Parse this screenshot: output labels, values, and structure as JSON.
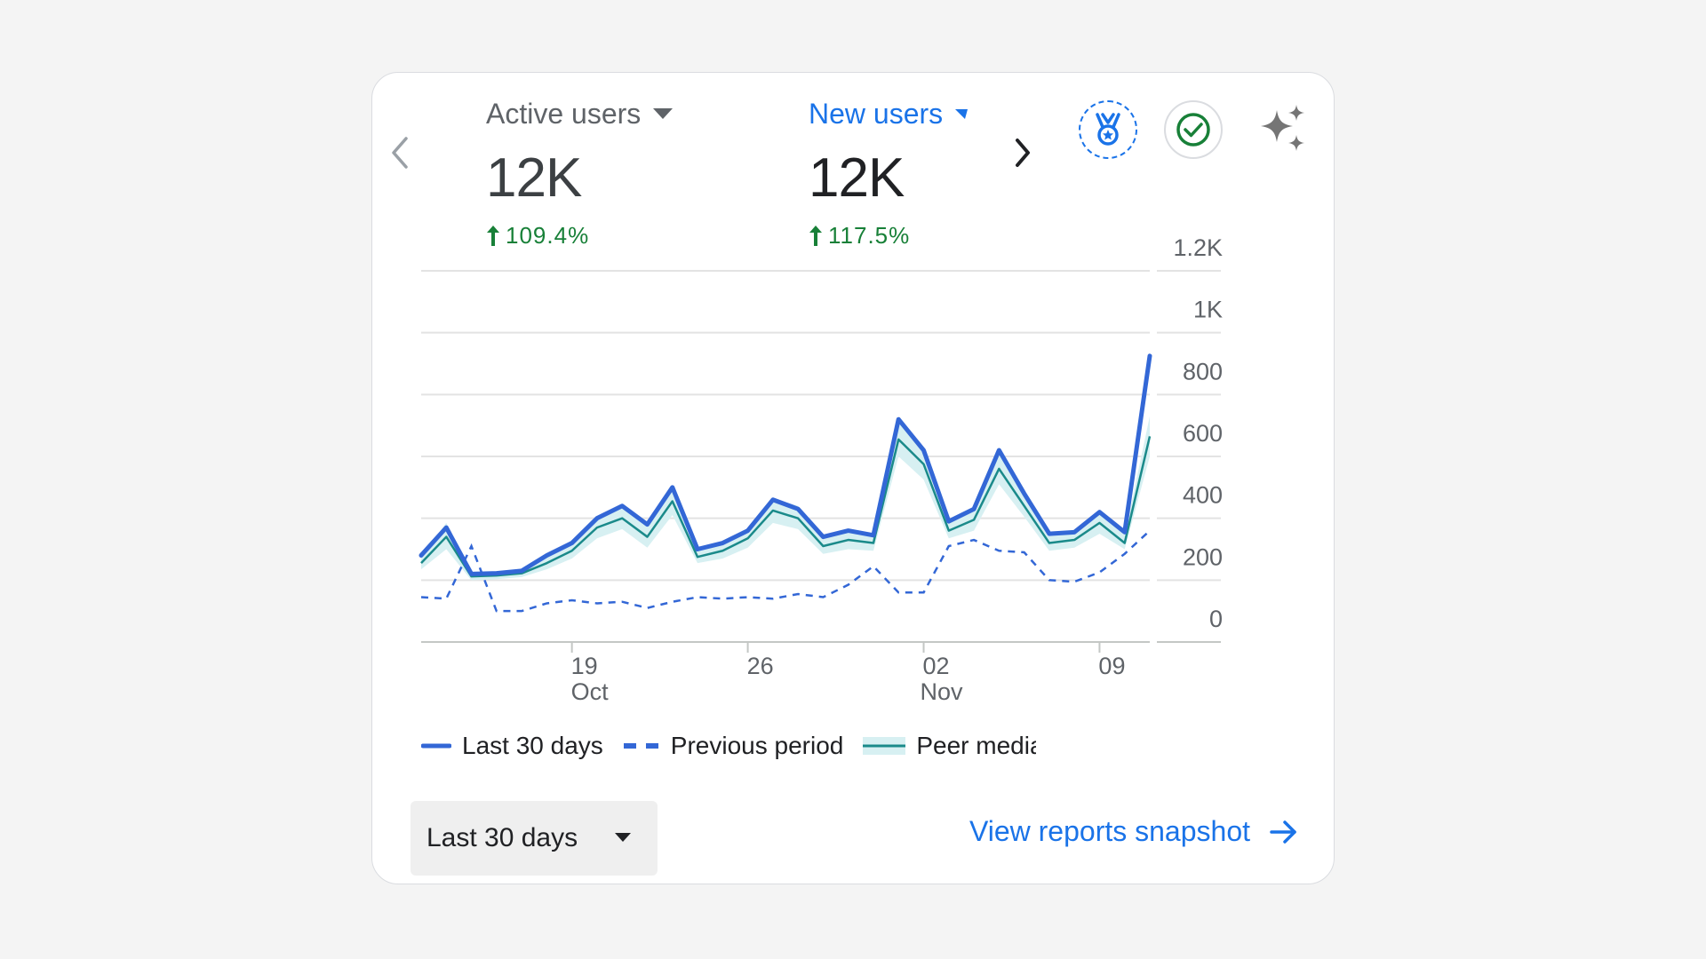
{
  "header": {
    "prev_icon": "chevron-left-icon",
    "next_icon": "chevron-right-icon",
    "metrics": [
      {
        "label": "Active users",
        "value": "12K",
        "change": "109.4%",
        "selected": false,
        "dropdown_icon": "caret-down-icon",
        "change_icon": "arrow-up-icon"
      },
      {
        "label": "New users",
        "value": "12K",
        "change": "117.5%",
        "selected": true,
        "dropdown_icon": "caret-down-small-icon",
        "change_icon": "arrow-up-icon"
      }
    ],
    "action_icons": [
      "medal-icon",
      "check-circle-icon",
      "sparkle-icon"
    ]
  },
  "chart_data": {
    "type": "line",
    "x_ticks": [
      {
        "day": 19,
        "label": "19",
        "sublabel": "Oct"
      },
      {
        "day": 26,
        "label": "26",
        "sublabel": ""
      },
      {
        "day": 33,
        "label": "02",
        "sublabel": "Nov"
      },
      {
        "day": 40,
        "label": "09",
        "sublabel": ""
      }
    ],
    "x": [
      13,
      14,
      15,
      16,
      17,
      18,
      19,
      20,
      21,
      22,
      23,
      24,
      25,
      26,
      27,
      28,
      29,
      30,
      31,
      32,
      33,
      34,
      35,
      36,
      37,
      38,
      39,
      40,
      41,
      42
    ],
    "y_ticks": [
      "0",
      "200",
      "400",
      "600",
      "800",
      "1K",
      "1.2K"
    ],
    "ylim": [
      0,
      1200
    ],
    "grid": true,
    "legend_position": "bottom",
    "series": [
      {
        "name": "Last 30 days",
        "style": "solid",
        "color": "#3367d6",
        "values": [
          280,
          370,
          220,
          222,
          230,
          280,
          320,
          400,
          440,
          380,
          500,
          300,
          320,
          360,
          460,
          430,
          340,
          360,
          345,
          720,
          620,
          390,
          430,
          620,
          480,
          350,
          355,
          420,
          355,
          925
        ]
      },
      {
        "name": "Previous period",
        "style": "dashed",
        "color": "#3367d6",
        "values": [
          145,
          140,
          310,
          100,
          100,
          125,
          135,
          125,
          130,
          110,
          130,
          145,
          140,
          145,
          140,
          155,
          145,
          185,
          245,
          160,
          160,
          310,
          330,
          295,
          290,
          200,
          195,
          225,
          285,
          360
        ]
      },
      {
        "name": "Peer median and range: Shc",
        "style": "band",
        "color": "#1a8a8a",
        "band_color": "#d7f0f2",
        "values": [
          255,
          340,
          212,
          215,
          222,
          255,
          295,
          370,
          400,
          340,
          455,
          275,
          295,
          335,
          425,
          400,
          310,
          330,
          320,
          655,
          575,
          360,
          395,
          560,
          440,
          320,
          330,
          385,
          320,
          665
        ],
        "band_low": [
          235,
          300,
          200,
          203,
          210,
          235,
          270,
          335,
          365,
          305,
          410,
          255,
          270,
          305,
          385,
          365,
          285,
          300,
          295,
          600,
          525,
          335,
          360,
          510,
          405,
          295,
          305,
          350,
          300,
          600
        ],
        "band_high": [
          275,
          385,
          225,
          228,
          236,
          280,
          320,
          405,
          440,
          375,
          500,
          300,
          320,
          365,
          465,
          440,
          340,
          360,
          345,
          710,
          625,
          390,
          430,
          615,
          480,
          350,
          355,
          420,
          345,
          730
        ]
      }
    ]
  },
  "footer": {
    "range_label": "Last 30 days",
    "range_caret_icon": "caret-down-icon",
    "link_label": "View reports snapshot",
    "link_icon": "arrow-right-icon"
  }
}
